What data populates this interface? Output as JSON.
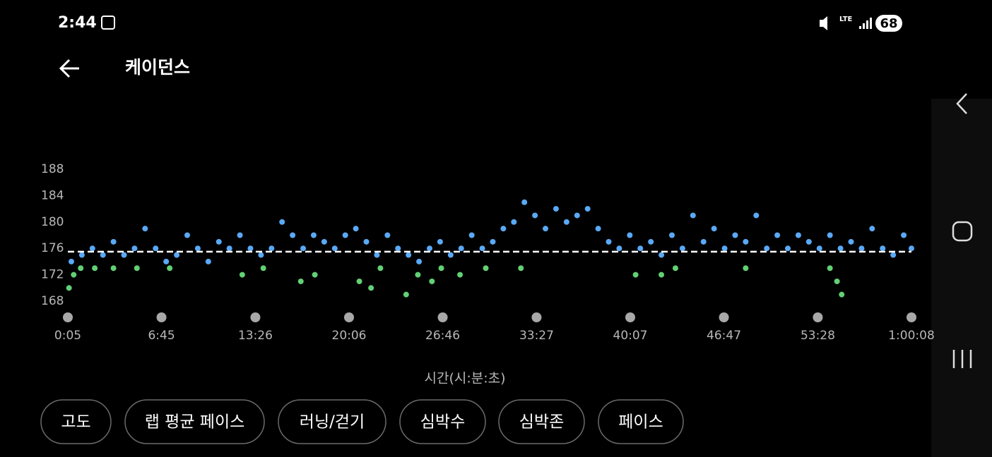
{
  "status_bar": {
    "time": "2:44",
    "battery": "68"
  },
  "header": {
    "title": "케이던스"
  },
  "chart_data": {
    "type": "scatter",
    "x_label": "시간(시:분:초)",
    "xlim": [
      5,
      3608
    ],
    "ylim": [
      168,
      188
    ],
    "yticks": [
      168,
      172,
      176,
      180,
      184,
      188
    ],
    "xticks": [
      {
        "value": 5,
        "label": "0:05"
      },
      {
        "value": 405,
        "label": "6:45"
      },
      {
        "value": 806,
        "label": "13:26"
      },
      {
        "value": 1206,
        "label": "20:06"
      },
      {
        "value": 1606,
        "label": "26:46"
      },
      {
        "value": 2007,
        "label": "33:27"
      },
      {
        "value": 2407,
        "label": "40:07"
      },
      {
        "value": 2807,
        "label": "46:47"
      },
      {
        "value": 3208,
        "label": "53:28"
      },
      {
        "value": 3608,
        "label": "1:00:08"
      }
    ],
    "mean_line": 175.5,
    "series": [
      {
        "color": "#5aa9f6",
        "x": [
          20,
          65,
          110,
          155,
          200,
          245,
          290,
          335,
          380,
          425,
          470,
          515,
          560,
          605,
          650,
          695,
          740,
          785,
          830,
          875,
          920,
          965,
          1010,
          1055,
          1100,
          1145,
          1190,
          1235,
          1280,
          1325,
          1370,
          1415,
          1460,
          1505,
          1550,
          1595,
          1640,
          1685,
          1730,
          1775,
          1820,
          1865,
          1910,
          1955,
          2000,
          2045,
          2090,
          2135,
          2180,
          2225,
          2270,
          2315,
          2360,
          2405,
          2450,
          2495,
          2540,
          2585,
          2630,
          2675,
          2720,
          2765,
          2810,
          2855,
          2900,
          2945,
          2990,
          3035,
          3080,
          3125,
          3170,
          3215,
          3260,
          3305,
          3350,
          3395,
          3440,
          3485,
          3530,
          3575,
          3608
        ],
        "values": [
          174,
          175,
          176,
          175,
          177,
          175,
          176,
          179,
          176,
          174,
          175,
          178,
          176,
          174,
          177,
          176,
          178,
          176,
          175,
          176,
          180,
          178,
          176,
          178,
          177,
          176,
          178,
          179,
          177,
          175,
          178,
          176,
          175,
          174,
          176,
          177,
          175,
          176,
          178,
          176,
          177,
          179,
          180,
          183,
          181,
          179,
          182,
          180,
          181,
          182,
          179,
          177,
          176,
          178,
          176,
          177,
          175,
          178,
          176,
          181,
          177,
          179,
          176,
          178,
          177,
          181,
          176,
          178,
          176,
          178,
          177,
          176,
          178,
          176,
          177,
          176,
          179,
          176,
          175,
          178,
          176
        ]
      },
      {
        "color": "#62d074",
        "x": [
          10,
          30,
          60,
          120,
          200,
          300,
          440,
          750,
          840,
          1000,
          1060,
          1250,
          1300,
          1340,
          1450,
          1500,
          1560,
          1600,
          1680,
          1790,
          1940,
          2430,
          2540,
          2600,
          2900,
          3260,
          3290,
          3310
        ],
        "values": [
          170,
          172,
          173,
          173,
          173,
          173,
          173,
          172,
          173,
          171,
          172,
          171,
          170,
          173,
          169,
          172,
          171,
          173,
          172,
          173,
          173,
          172,
          172,
          173,
          173,
          173,
          171,
          169
        ]
      }
    ]
  },
  "buttons": [
    "고도",
    "랩 평균 페이스",
    "러닝/걷기",
    "심박수",
    "심박존",
    "페이스"
  ]
}
